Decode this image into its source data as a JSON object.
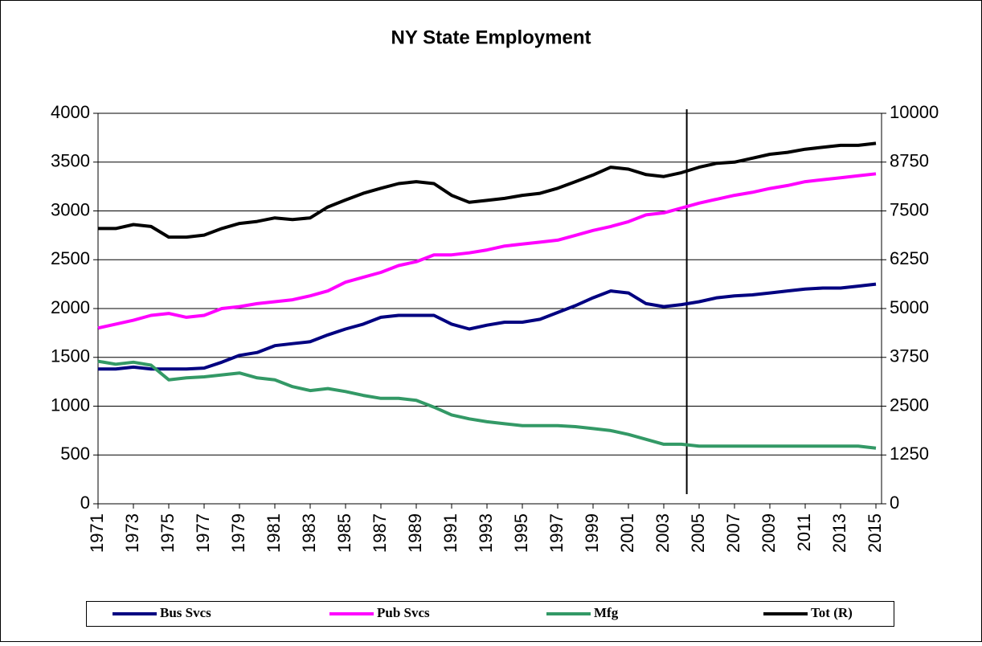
{
  "chart_data": {
    "type": "line",
    "title": "NY State Employment",
    "x": [
      1971,
      1972,
      1973,
      1974,
      1975,
      1976,
      1977,
      1978,
      1979,
      1980,
      1981,
      1982,
      1983,
      1984,
      1985,
      1986,
      1987,
      1988,
      1989,
      1990,
      1991,
      1992,
      1993,
      1994,
      1995,
      1996,
      1997,
      1998,
      1999,
      2000,
      2001,
      2002,
      2003,
      2004,
      2005,
      2006,
      2007,
      2008,
      2009,
      2010,
      2011,
      2012,
      2013,
      2014,
      2015
    ],
    "xlim": [
      1971,
      2015
    ],
    "xticks": [
      1971,
      1973,
      1975,
      1977,
      1979,
      1981,
      1983,
      1985,
      1987,
      1989,
      1991,
      1993,
      1995,
      1997,
      1999,
      2001,
      2003,
      2005,
      2007,
      2009,
      2011,
      2013,
      2015
    ],
    "ylim": [
      0,
      4000
    ],
    "yticks": [
      0,
      500,
      1000,
      1500,
      2000,
      2500,
      3000,
      3500,
      4000
    ],
    "y2lim": [
      0,
      10000
    ],
    "y2ticks": [
      0,
      1250,
      2500,
      3750,
      5000,
      6250,
      7500,
      8750,
      10000
    ],
    "grid": true,
    "legend": "bottom",
    "vline_x": 2004.3,
    "series": [
      {
        "name": "Bus Svcs",
        "color": "#000080",
        "values": [
          1380,
          1380,
          1400,
          1380,
          1380,
          1380,
          1390,
          1450,
          1520,
          1550,
          1620,
          1640,
          1660,
          1730,
          1790,
          1840,
          1910,
          1930,
          1930,
          1930,
          1840,
          1790,
          1830,
          1860,
          1860,
          1890,
          1960,
          2030,
          2110,
          2180,
          2160,
          2050,
          2020,
          2040,
          2070,
          2110,
          2130,
          2140,
          2160,
          2180,
          2200,
          2210,
          2210,
          2230,
          2250
        ]
      },
      {
        "name": "Pub Svcs",
        "color": "#ff00ff",
        "values": [
          1800,
          1840,
          1880,
          1930,
          1950,
          1910,
          1930,
          2000,
          2020,
          2050,
          2070,
          2090,
          2130,
          2180,
          2270,
          2320,
          2370,
          2440,
          2480,
          2550,
          2550,
          2570,
          2600,
          2640,
          2660,
          2680,
          2700,
          2750,
          2800,
          2840,
          2890,
          2960,
          2980,
          3030,
          3080,
          3120,
          3160,
          3190,
          3230,
          3260,
          3300,
          3320,
          3340,
          3360,
          3380
        ]
      },
      {
        "name": "Mfg",
        "color": "#339966",
        "values": [
          1460,
          1430,
          1450,
          1420,
          1270,
          1290,
          1300,
          1320,
          1340,
          1290,
          1270,
          1200,
          1160,
          1180,
          1150,
          1110,
          1080,
          1080,
          1060,
          990,
          910,
          870,
          840,
          820,
          800,
          800,
          800,
          790,
          770,
          750,
          710,
          660,
          610,
          610,
          590,
          590,
          590,
          590,
          590,
          590,
          590,
          590,
          590,
          590,
          570
        ]
      },
      {
        "name": "Tot (R)",
        "color": "#000000",
        "axis": "y2",
        "values": [
          7050,
          7050,
          7150,
          7100,
          6830,
          6830,
          6880,
          7050,
          7180,
          7230,
          7320,
          7280,
          7320,
          7600,
          7780,
          7950,
          8080,
          8200,
          8250,
          8200,
          7900,
          7720,
          7770,
          7820,
          7900,
          7950,
          8080,
          8250,
          8420,
          8620,
          8570,
          8430,
          8380,
          8480,
          8620,
          8720,
          8750,
          8850,
          8950,
          9000,
          9080,
          9130,
          9180,
          9180,
          9230
        ]
      }
    ]
  }
}
